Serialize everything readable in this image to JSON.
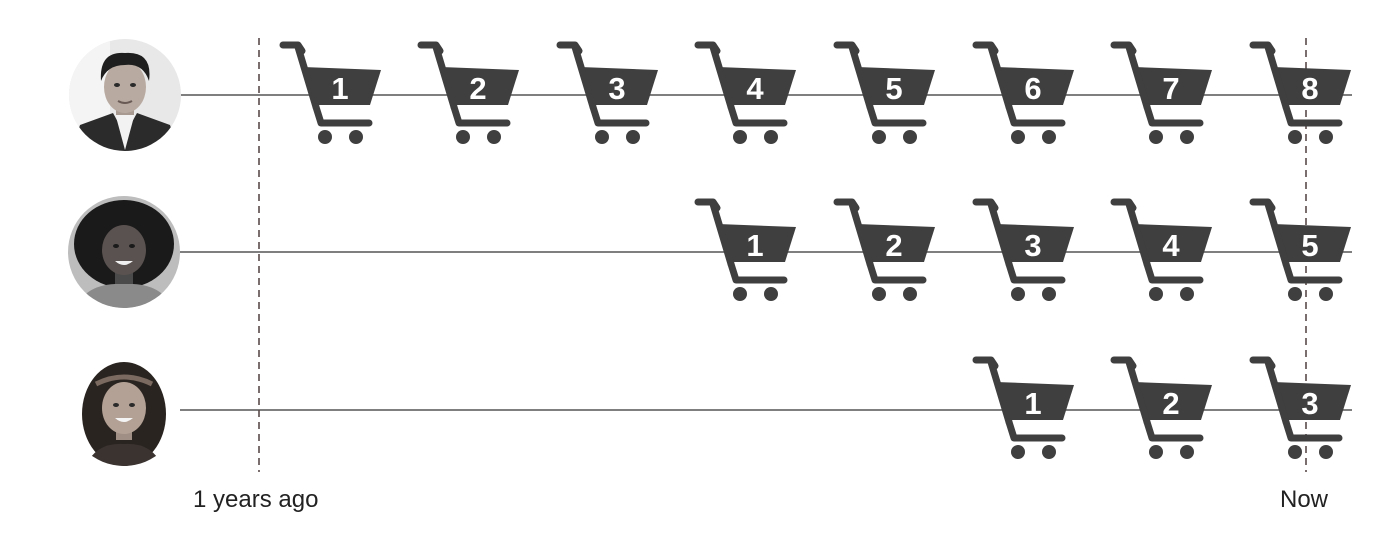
{
  "timeline": {
    "start_label": "1 years ago",
    "end_label": "Now",
    "rows": [
      {
        "customer": "young man in suit",
        "avatar": "man-portrait-avatar",
        "purchases": [
          "1",
          "2",
          "3",
          "4",
          "5",
          "6",
          "7",
          "8"
        ]
      },
      {
        "customer": "woman with curly hair",
        "avatar": "woman-portrait-avatar",
        "purchases": [
          "1",
          "2",
          "3",
          "4",
          "5"
        ]
      },
      {
        "customer": "girl with headband",
        "avatar": "girl-portrait-avatar",
        "purchases": [
          "1",
          "2",
          "3"
        ]
      }
    ]
  },
  "colors": {
    "cart": "#3f3f3f",
    "line": "#333333",
    "dashed_marker": "#5a4a4a",
    "number": "#ffffff"
  },
  "icon": "shopping-cart-icon"
}
